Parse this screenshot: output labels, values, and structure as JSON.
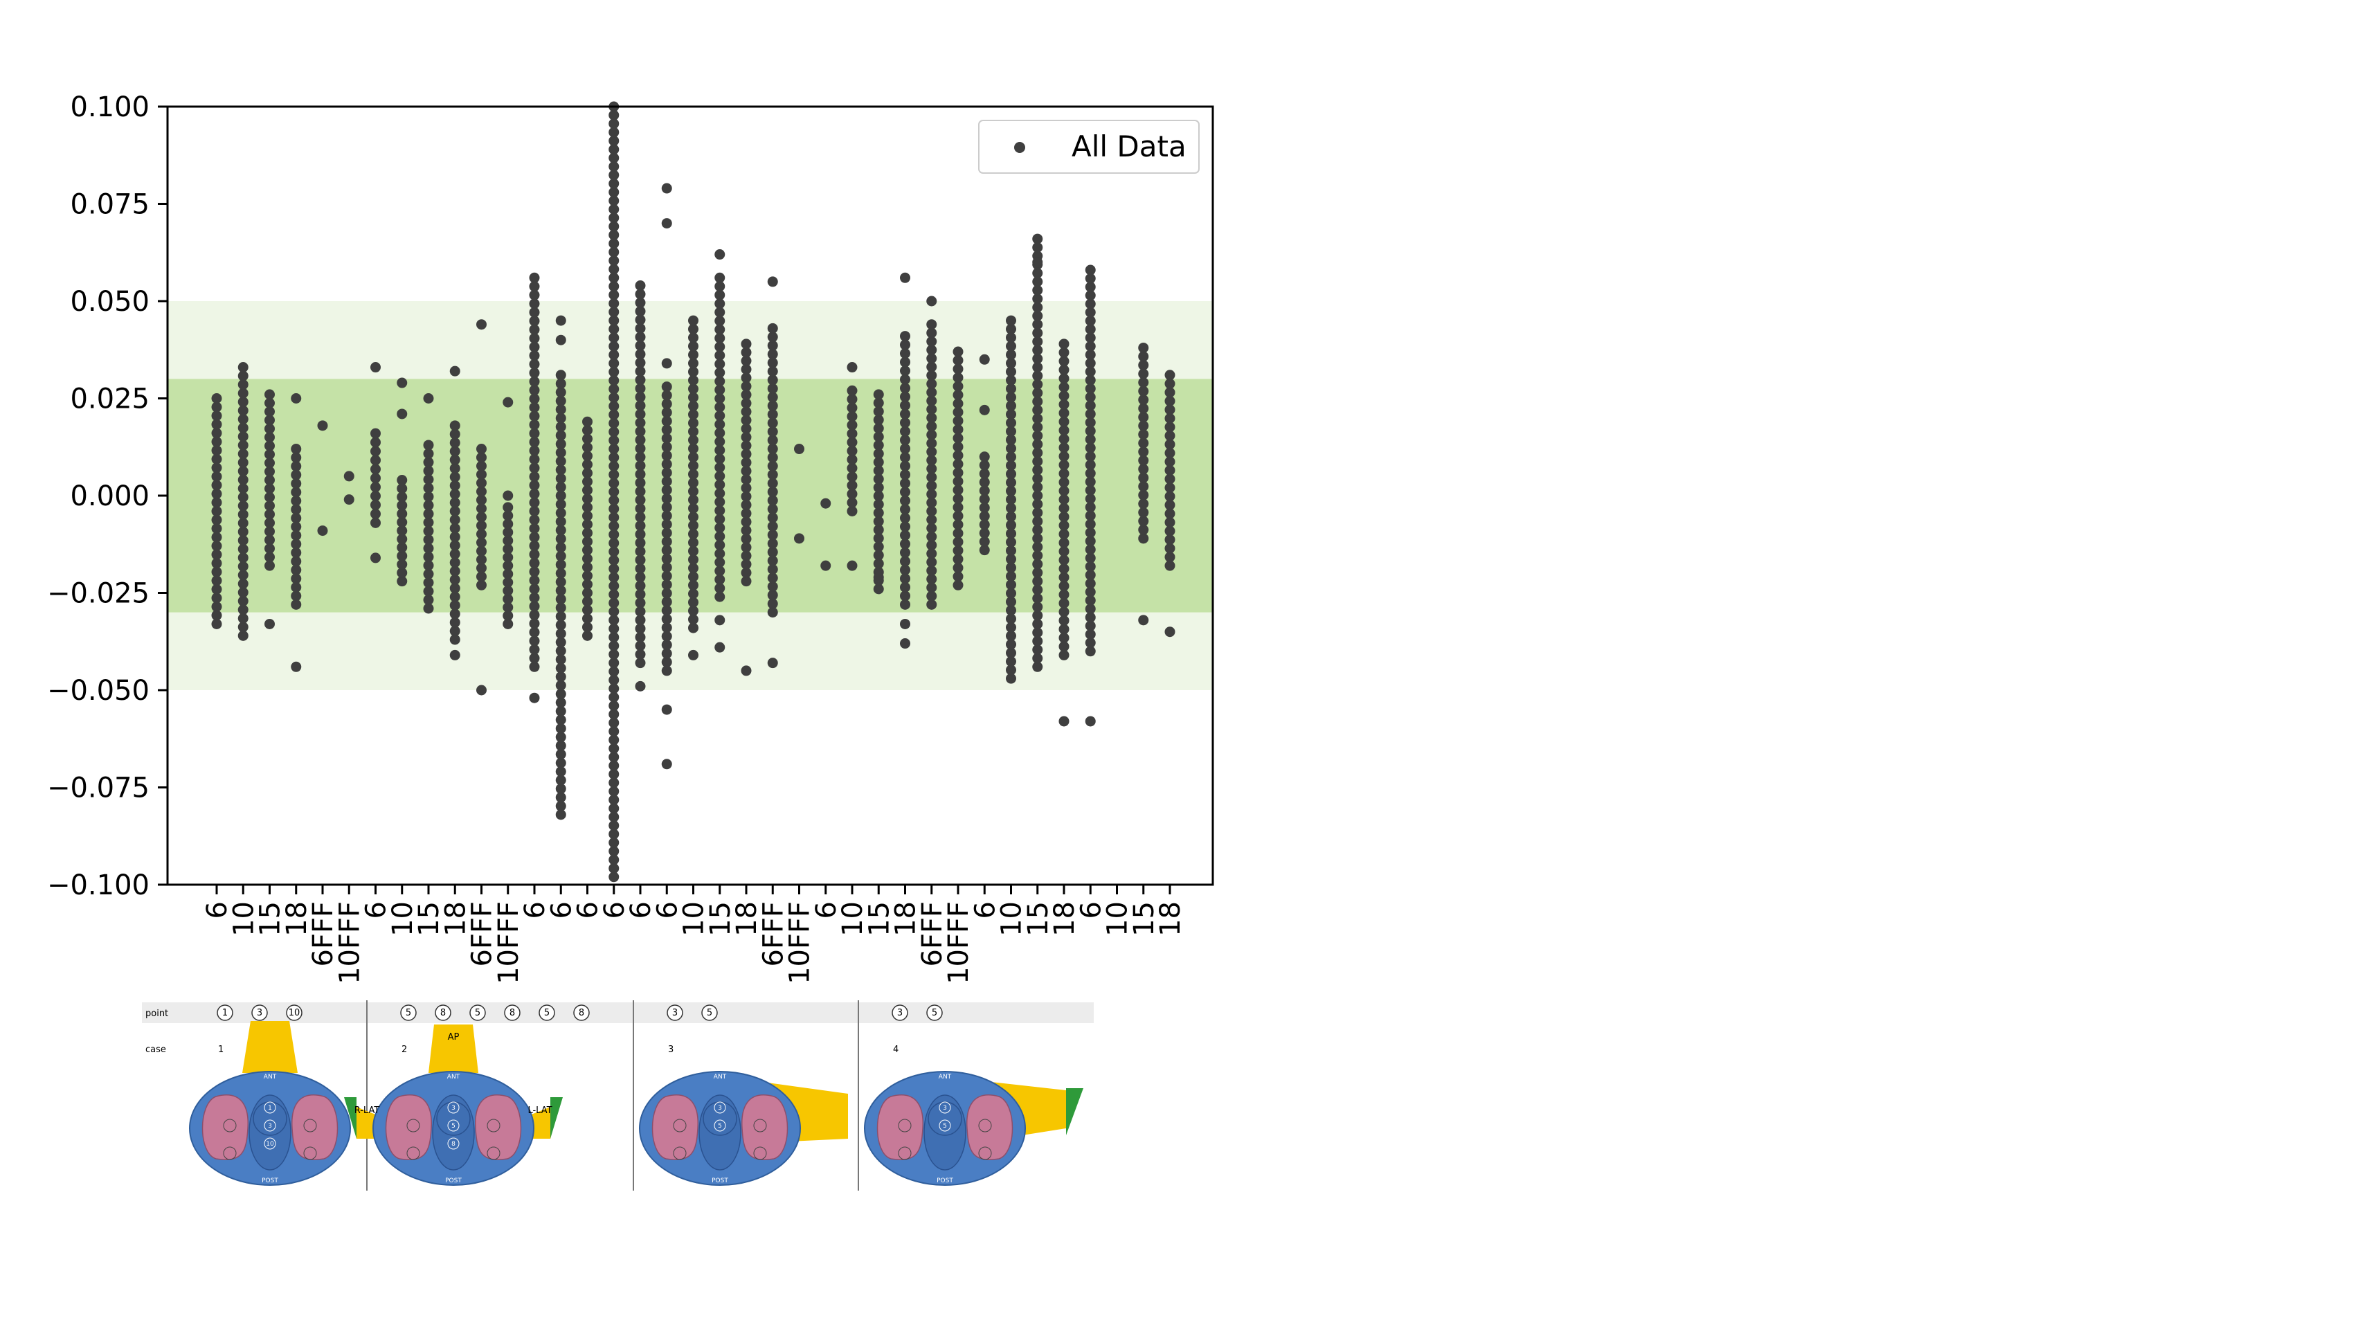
{
  "chart_data": {
    "type": "scatter",
    "ylim": [
      -0.1,
      0.1
    ],
    "yticks": [
      "0.100",
      "0.075",
      "0.050",
      "0.025",
      "0.000",
      "−0.025",
      "−0.050",
      "−0.075",
      "−0.100"
    ],
    "ytick_values": [
      0.1,
      0.075,
      0.05,
      0.025,
      0.0,
      -0.025,
      -0.05,
      -0.075,
      -0.1
    ],
    "xtick_labels": [
      "6",
      "10",
      "15",
      "18",
      "6FFF",
      "10FFF",
      "6",
      "10",
      "15",
      "18",
      "6FFF",
      "10FFF",
      "6",
      "6",
      "6",
      "6",
      "6",
      "6",
      "10",
      "15",
      "18",
      "6FFF",
      "10FFF",
      "6",
      "10",
      "15",
      "18",
      "6FFF",
      "10FFF",
      "6",
      "10",
      "15",
      "18",
      "6",
      "10",
      "15",
      "18"
    ],
    "bands": [
      {
        "from": -0.05,
        "to": 0.05,
        "color": "#eef6e6"
      },
      {
        "from": -0.03,
        "to": 0.03,
        "color": "#c5e2a7"
      }
    ],
    "legend": {
      "label": "All Data",
      "placement": "upper-right"
    },
    "marker_color": "#3f3f3f",
    "columns": [
      {
        "min": -0.033,
        "max": 0.025,
        "extra": []
      },
      {
        "min": -0.036,
        "max": 0.033,
        "extra": []
      },
      {
        "min": -0.018,
        "max": 0.026,
        "extra": [
          -0.033
        ]
      },
      {
        "min": -0.028,
        "max": 0.012,
        "extra": [
          0.025,
          -0.044
        ]
      },
      {
        "min": null,
        "max": null,
        "extra": [
          0.018,
          -0.009
        ]
      },
      {
        "min": null,
        "max": null,
        "extra": [
          0.005,
          -0.001
        ]
      },
      {
        "min": -0.007,
        "max": 0.016,
        "extra": [
          0.033,
          -0.016
        ]
      },
      {
        "min": -0.022,
        "max": 0.004,
        "extra": [
          0.029,
          0.021
        ]
      },
      {
        "min": -0.029,
        "max": 0.013,
        "extra": [
          0.025
        ]
      },
      {
        "min": -0.037,
        "max": 0.018,
        "extra": [
          0.032,
          -0.041
        ]
      },
      {
        "min": -0.023,
        "max": 0.012,
        "extra": [
          0.044,
          -0.05
        ]
      },
      {
        "min": -0.033,
        "max": -0.003,
        "extra": [
          0.024,
          0.0
        ]
      },
      {
        "min": -0.044,
        "max": 0.056,
        "extra": [
          -0.052
        ]
      },
      {
        "min": -0.082,
        "max": 0.031,
        "extra": [
          0.045,
          0.04
        ]
      },
      {
        "min": -0.036,
        "max": 0.019,
        "extra": []
      },
      {
        "min": -0.098,
        "max": 0.1,
        "extra": []
      },
      {
        "min": -0.043,
        "max": 0.054,
        "extra": [
          -0.049
        ]
      },
      {
        "min": -0.045,
        "max": 0.028,
        "extra": [
          0.079,
          0.07,
          0.034,
          -0.055,
          -0.069
        ]
      },
      {
        "min": -0.034,
        "max": 0.045,
        "extra": [
          -0.041
        ]
      },
      {
        "min": -0.026,
        "max": 0.056,
        "extra": [
          0.062,
          -0.032,
          -0.039
        ]
      },
      {
        "min": -0.022,
        "max": 0.039,
        "extra": [
          -0.045
        ]
      },
      {
        "min": -0.03,
        "max": 0.043,
        "extra": [
          0.055,
          -0.043
        ]
      },
      {
        "min": null,
        "max": null,
        "extra": [
          0.012,
          -0.011
        ]
      },
      {
        "min": null,
        "max": null,
        "extra": [
          -0.002,
          -0.018
        ]
      },
      {
        "min": -0.004,
        "max": 0.027,
        "extra": [
          0.033,
          -0.018
        ]
      },
      {
        "min": -0.024,
        "max": 0.026,
        "extra": [
          -0.021
        ]
      },
      {
        "min": -0.028,
        "max": 0.041,
        "extra": [
          0.056,
          -0.033,
          -0.038
        ]
      },
      {
        "min": -0.028,
        "max": 0.044,
        "extra": [
          0.05
        ]
      },
      {
        "min": -0.023,
        "max": 0.037,
        "extra": []
      },
      {
        "min": -0.014,
        "max": 0.01,
        "extra": [
          0.035,
          0.022
        ]
      },
      {
        "min": -0.047,
        "max": 0.045,
        "extra": []
      },
      {
        "min": -0.044,
        "max": 0.066,
        "extra": [
          0.06
        ]
      },
      {
        "min": -0.041,
        "max": 0.039,
        "extra": [
          -0.058
        ]
      },
      {
        "min": -0.04,
        "max": 0.058,
        "extra": [
          -0.058
        ]
      },
      {
        "min": null,
        "max": null,
        "extra": []
      },
      {
        "min": -0.011,
        "max": 0.038,
        "extra": [
          -0.032
        ]
      },
      {
        "min": -0.018,
        "max": 0.031,
        "extra": [
          -0.035
        ]
      }
    ]
  },
  "diagram": {
    "row_labels": {
      "point": "point",
      "case": "case"
    },
    "panels": [
      {
        "case": "1",
        "points": [
          "1",
          "3",
          "10"
        ],
        "inner_labels": [
          "1",
          "3",
          "10"
        ],
        "top": "ANT",
        "bottom": "POST",
        "beams": []
      },
      {
        "case": "2",
        "points": [
          "5",
          "8",
          "5",
          "8",
          "5",
          "8"
        ],
        "inner_labels": [
          "3",
          "5",
          "8"
        ],
        "top": "ANT",
        "bottom": "POST",
        "beams": [
          "AP",
          "R-LAT",
          "L-LAT"
        ]
      },
      {
        "case": "3",
        "points": [
          "3",
          "5"
        ],
        "inner_labels": [
          "3",
          "5"
        ],
        "top": "ANT",
        "bottom": "POST",
        "beams": []
      },
      {
        "case": "4",
        "points": [
          "3",
          "5"
        ],
        "inner_labels": [
          "3",
          "5"
        ],
        "top": "ANT",
        "bottom": "POST",
        "beams": []
      }
    ]
  }
}
